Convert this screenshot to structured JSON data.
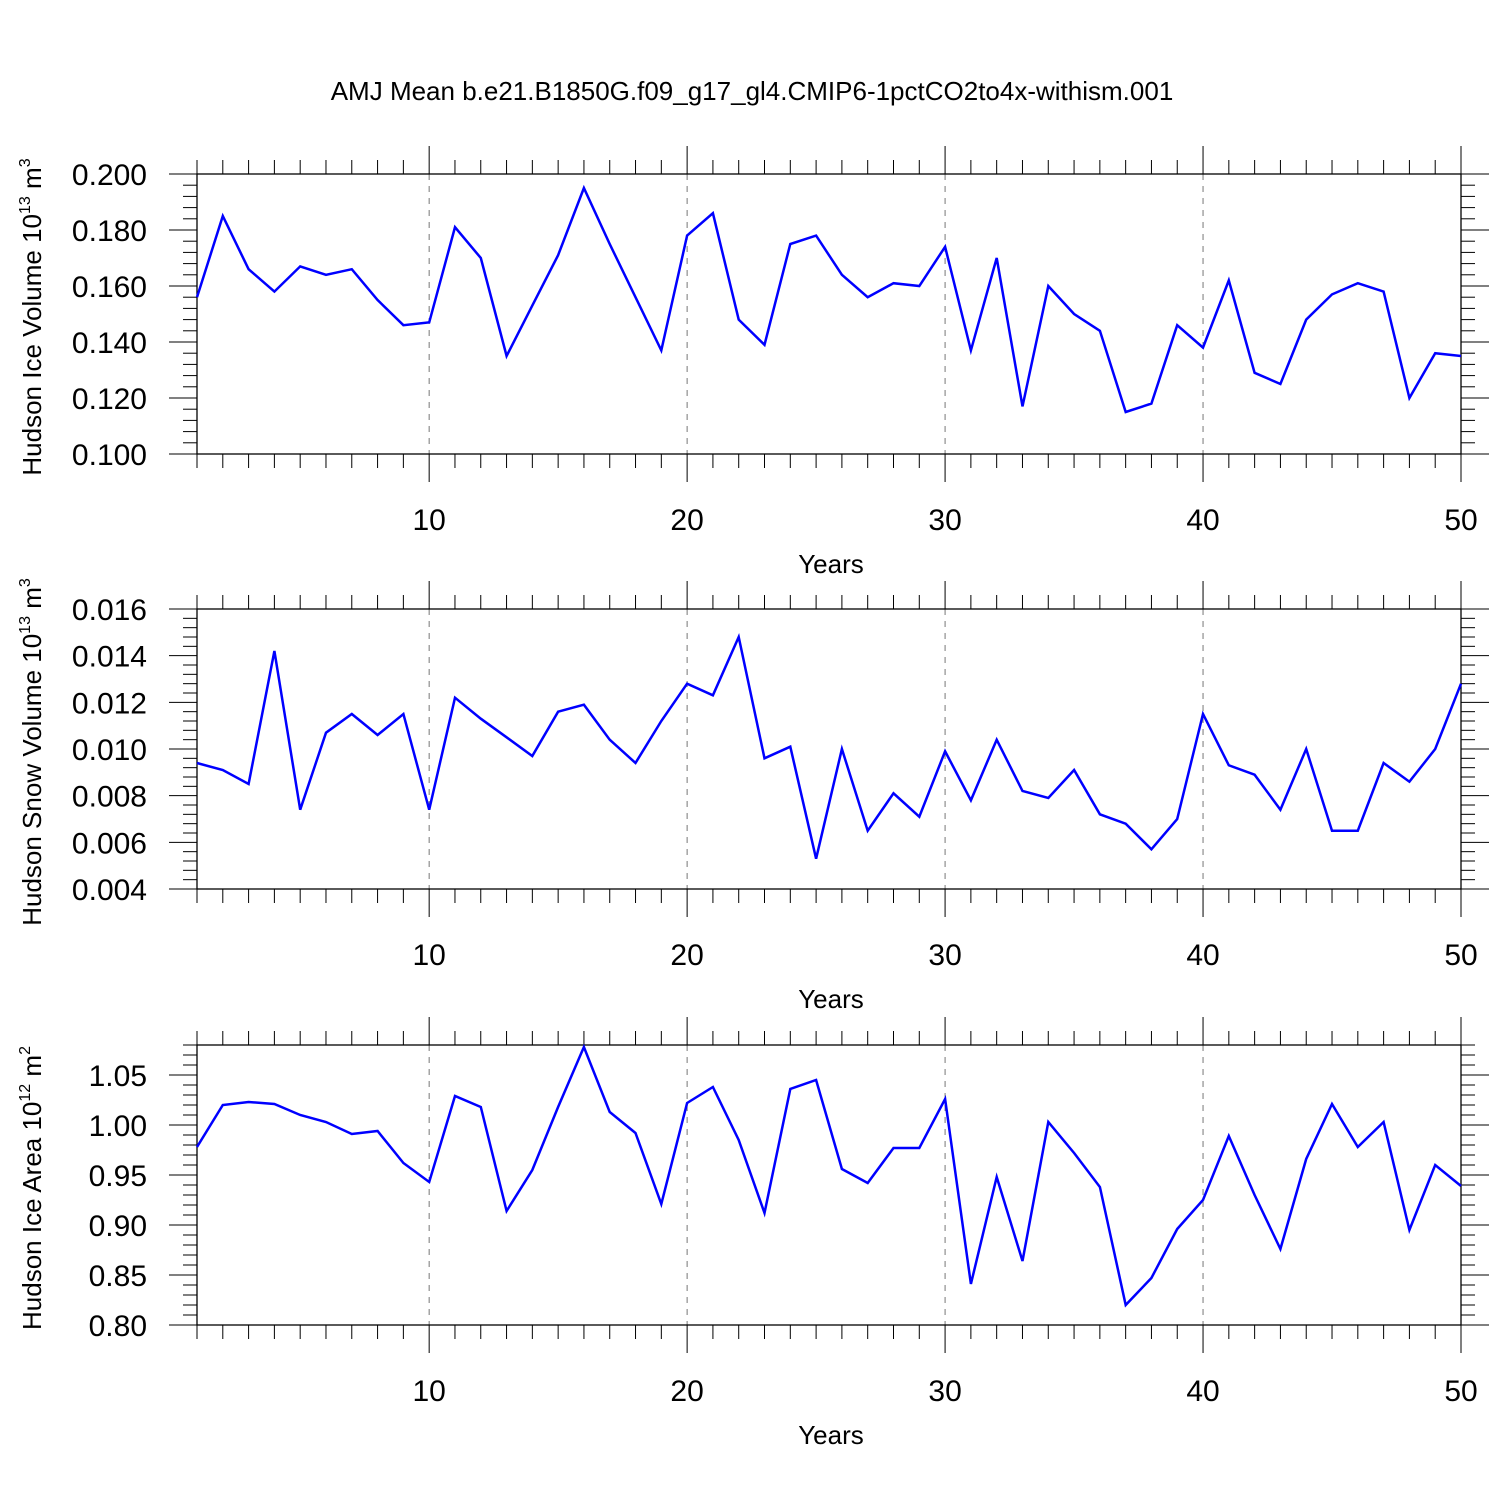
{
  "title": "AMJ Mean b.e21.B1850G.f09_g17_gl4.CMIP6-1pctCO2to4x-withism.001",
  "line_color": "#0000ff",
  "chart_data": [
    {
      "type": "line",
      "name": "ice-volume",
      "ylabel": {
        "main": "Hudson Ice Volume 10",
        "exp": "13",
        "unit": " m",
        "unit_exp": "3"
      },
      "xlabel": "Years",
      "xlim": [
        1,
        50
      ],
      "xticks": [
        10,
        20,
        30,
        40,
        50
      ],
      "ylim": [
        0.1,
        0.2
      ],
      "yticks": [
        0.1,
        0.12,
        0.14,
        0.16,
        0.18,
        0.2
      ],
      "ytick_labels": [
        "0.100",
        "0.120",
        "0.140",
        "0.160",
        "0.180",
        "0.200"
      ],
      "x": [
        1,
        2,
        3,
        4,
        5,
        6,
        7,
        8,
        9,
        10,
        11,
        12,
        13,
        14,
        15,
        16,
        17,
        18,
        19,
        20,
        21,
        22,
        23,
        24,
        25,
        26,
        27,
        28,
        29,
        30,
        31,
        32,
        33,
        34,
        35,
        36,
        37,
        38,
        39,
        40,
        41,
        42,
        43,
        44,
        45,
        46,
        47,
        48,
        49,
        50
      ],
      "values": [
        0.156,
        0.185,
        0.166,
        0.158,
        0.167,
        0.164,
        0.166,
        0.155,
        0.146,
        0.147,
        0.181,
        0.17,
        0.135,
        0.153,
        0.171,
        0.195,
        0.175,
        0.156,
        0.137,
        0.178,
        0.186,
        0.148,
        0.139,
        0.175,
        0.178,
        0.164,
        0.156,
        0.161,
        0.16,
        0.174,
        0.137,
        0.17,
        0.117,
        0.16,
        0.15,
        0.144,
        0.115,
        0.118,
        0.146,
        0.138,
        0.162,
        0.129,
        0.125,
        0.148,
        0.157,
        0.161,
        0.158,
        0.12,
        0.136,
        0.135
      ]
    },
    {
      "type": "line",
      "name": "snow-volume",
      "ylabel": {
        "main": "Hudson Snow Volume 10",
        "exp": "13",
        "unit": " m",
        "unit_exp": "3"
      },
      "xlabel": "Years",
      "xlim": [
        1,
        50
      ],
      "xticks": [
        10,
        20,
        30,
        40,
        50
      ],
      "ylim": [
        0.004,
        0.016
      ],
      "yticks": [
        0.004,
        0.006,
        0.008,
        0.01,
        0.012,
        0.014,
        0.016
      ],
      "ytick_labels": [
        "0.004",
        "0.006",
        "0.008",
        "0.010",
        "0.012",
        "0.014",
        "0.016"
      ],
      "x": [
        1,
        2,
        3,
        4,
        5,
        6,
        7,
        8,
        9,
        10,
        11,
        12,
        13,
        14,
        15,
        16,
        17,
        18,
        19,
        20,
        21,
        22,
        23,
        24,
        25,
        26,
        27,
        28,
        29,
        30,
        31,
        32,
        33,
        34,
        35,
        36,
        37,
        38,
        39,
        40,
        41,
        42,
        43,
        44,
        45,
        46,
        47,
        48,
        49,
        50
      ],
      "values": [
        0.0094,
        0.0091,
        0.0085,
        0.0142,
        0.0074,
        0.0107,
        0.0115,
        0.0106,
        0.0115,
        0.0074,
        0.0122,
        0.0113,
        0.0105,
        0.0097,
        0.0116,
        0.0119,
        0.0104,
        0.0094,
        0.0112,
        0.0128,
        0.0123,
        0.0148,
        0.0096,
        0.0101,
        0.0053,
        0.01,
        0.0065,
        0.0081,
        0.0071,
        0.0099,
        0.0078,
        0.0104,
        0.0082,
        0.0079,
        0.0091,
        0.0072,
        0.0068,
        0.0057,
        0.007,
        0.0115,
        0.0093,
        0.0089,
        0.0074,
        0.01,
        0.0065,
        0.0065,
        0.0094,
        0.0086,
        0.01,
        0.0128
      ]
    },
    {
      "type": "line",
      "name": "ice-area",
      "ylabel": {
        "main": "Hudson Ice Area 10",
        "exp": "12",
        "unit": " m",
        "unit_exp": "2"
      },
      "xlabel": "Years",
      "xlim": [
        1,
        50
      ],
      "xticks": [
        10,
        20,
        30,
        40,
        50
      ],
      "ylim": [
        0.8,
        1.08
      ],
      "yticks": [
        0.8,
        0.85,
        0.9,
        0.95,
        1.0,
        1.05
      ],
      "ytick_labels": [
        "0.80",
        "0.85",
        "0.90",
        "0.95",
        "1.00",
        "1.05"
      ],
      "x": [
        1,
        2,
        3,
        4,
        5,
        6,
        7,
        8,
        9,
        10,
        11,
        12,
        13,
        14,
        15,
        16,
        17,
        18,
        19,
        20,
        21,
        22,
        23,
        24,
        25,
        26,
        27,
        28,
        29,
        30,
        31,
        32,
        33,
        34,
        35,
        36,
        37,
        38,
        39,
        40,
        41,
        42,
        43,
        44,
        45,
        46,
        47,
        48,
        49,
        50
      ],
      "values": [
        0.978,
        1.02,
        1.023,
        1.021,
        1.01,
        1.003,
        0.991,
        0.994,
        0.962,
        0.943,
        1.029,
        1.018,
        0.914,
        0.955,
        1.018,
        1.078,
        1.013,
        0.992,
        0.921,
        1.022,
        1.038,
        0.985,
        0.912,
        1.036,
        1.045,
        0.956,
        0.942,
        0.977,
        0.977,
        1.026,
        0.841,
        0.948,
        0.864,
        1.003,
        0.972,
        0.938,
        0.82,
        0.847,
        0.896,
        0.925,
        0.989,
        0.93,
        0.876,
        0.966,
        1.021,
        0.978,
        1.003,
        0.895,
        0.96,
        0.939
      ]
    }
  ]
}
